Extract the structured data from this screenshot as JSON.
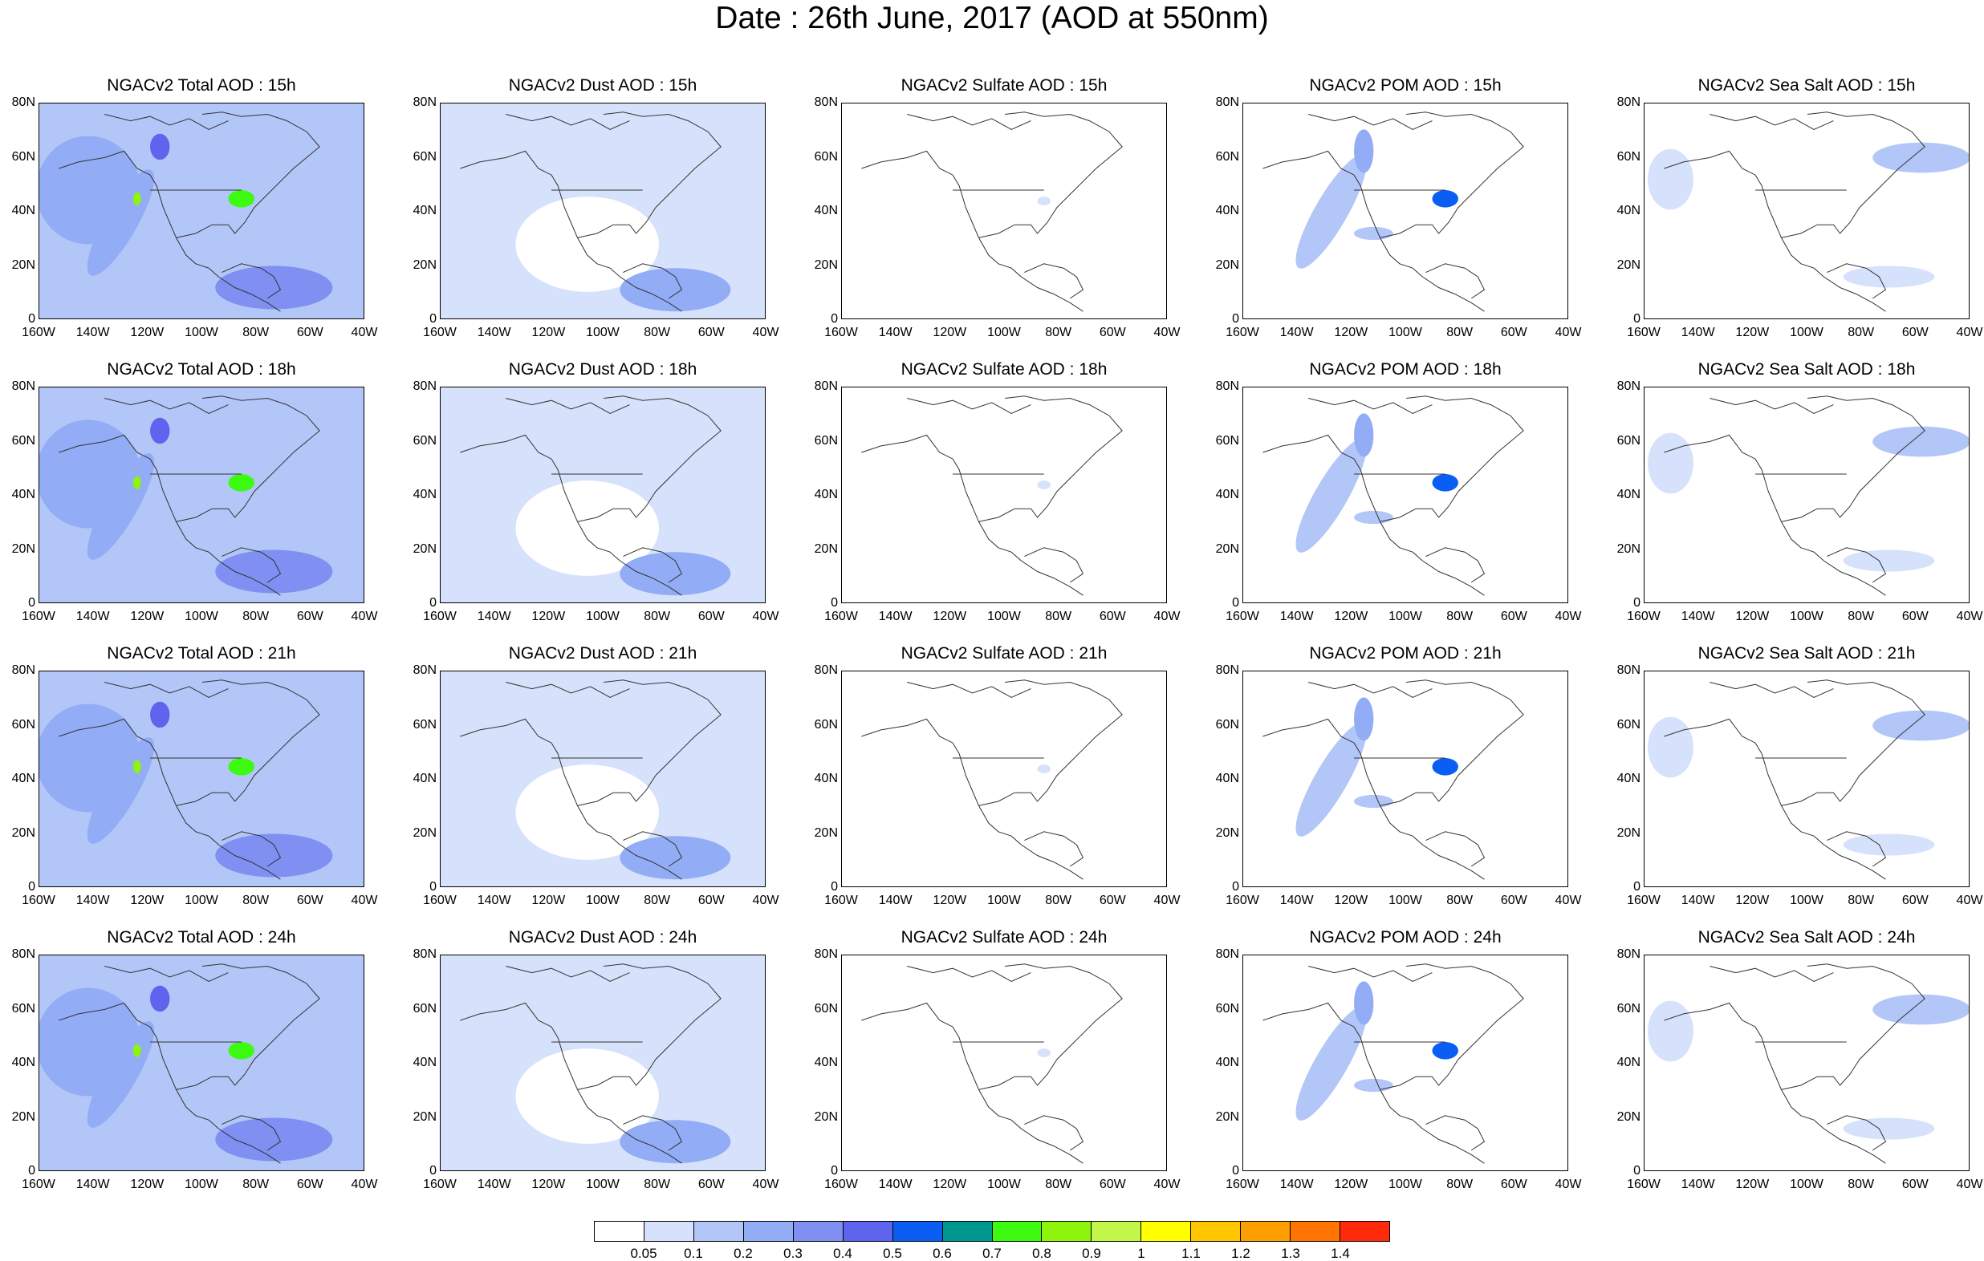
{
  "title": "Date : 26th June, 2017 (AOD at 550nm)",
  "panel_titles": [
    [
      "NGACv2 Total AOD : 15h",
      "NGACv2 Dust AOD : 15h",
      "NGACv2 Sulfate AOD : 15h",
      "NGACv2 POM AOD : 15h",
      "NGACv2 Sea Salt AOD : 15h"
    ],
    [
      "NGACv2 Total AOD : 18h",
      "NGACv2 Dust AOD : 18h",
      "NGACv2 Sulfate AOD : 18h",
      "NGACv2 POM AOD : 18h",
      "NGACv2 Sea Salt AOD : 18h"
    ],
    [
      "NGACv2 Total AOD : 21h",
      "NGACv2 Dust AOD : 21h",
      "NGACv2 Sulfate AOD : 21h",
      "NGACv2 POM AOD : 21h",
      "NGACv2 Sea Salt AOD : 21h"
    ],
    [
      "NGACv2 Total AOD : 24h",
      "NGACv2 Dust AOD : 24h",
      "NGACv2 Sulfate AOD : 24h",
      "NGACv2 POM AOD : 24h",
      "NGACv2 Sea Salt  AOD : 24h"
    ]
  ],
  "y_ticks": [
    "0",
    "20N",
    "40N",
    "60N",
    "80N"
  ],
  "x_ticks": [
    "160W",
    "140W",
    "120W",
    "100W",
    "80W",
    "60W",
    "40W"
  ],
  "extent": {
    "lon": [
      -160,
      -40
    ],
    "lat": [
      0,
      80
    ]
  },
  "colorbar": {
    "colors": [
      "#ffffff",
      "#d6e1fb",
      "#b2c6f7",
      "#92acf5",
      "#7f8ff2",
      "#5f64ee",
      "#0a5ef4",
      "#00978f",
      "#3dfa11",
      "#8ef40b",
      "#c2f74a",
      "#ffff00",
      "#ffc600",
      "#ff9e00",
      "#ff7400",
      "#ff2a0b"
    ],
    "labels": [
      "0.05",
      "0.1",
      "0.2",
      "0.3",
      "0.4",
      "0.5",
      "0.6",
      "0.7",
      "0.8",
      "0.9",
      "1",
      "1.1",
      "1.2",
      "1.3",
      "1.4"
    ]
  },
  "species_columns": [
    "Total",
    "Dust",
    "Sulfate",
    "POM",
    "Sea Salt"
  ],
  "hours": [
    "15h",
    "18h",
    "21h",
    "24h"
  ]
}
